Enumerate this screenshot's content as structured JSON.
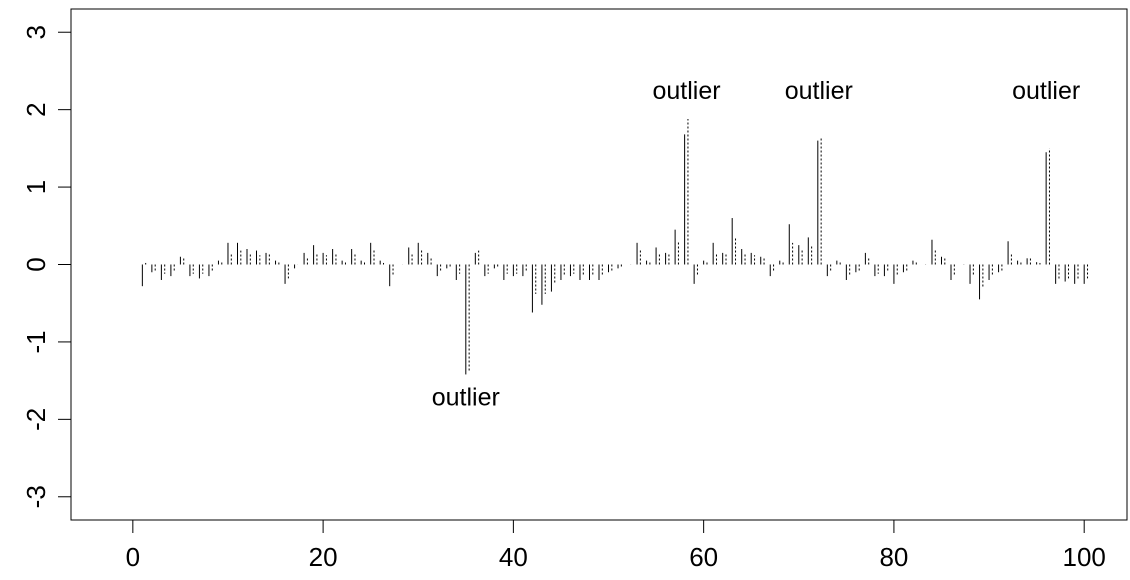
{
  "chart_data": {
    "type": "bar",
    "title": "",
    "xlabel": "",
    "ylabel": "",
    "xlim": [
      -6.5,
      104.5
    ],
    "ylim": [
      -3.3,
      3.3
    ],
    "x_ticks": [
      0,
      20,
      40,
      60,
      80,
      100
    ],
    "y_ticks": [
      -3,
      -2,
      -1,
      0,
      1,
      2,
      3
    ],
    "x_tick_labels": [
      "0",
      "20",
      "40",
      "60",
      "80",
      "100"
    ],
    "y_tick_labels": [
      "-3",
      "-2",
      "-1",
      "0",
      "1",
      "2",
      "3"
    ],
    "grid": false,
    "legend": "none",
    "series": [
      {
        "style": "solid",
        "values": [
          -0.28,
          -0.1,
          -0.2,
          -0.15,
          0.1,
          -0.15,
          -0.18,
          -0.15,
          0.05,
          0.28,
          0.28,
          0.2,
          0.18,
          0.15,
          0.05,
          -0.25,
          -0.05,
          0.15,
          0.25,
          0.15,
          0.2,
          0.05,
          0.2,
          0.05,
          0.28,
          0.05,
          -0.28,
          0.0,
          0.22,
          0.28,
          0.15,
          -0.15,
          -0.05,
          -0.2,
          -1.42,
          0.15,
          -0.15,
          -0.05,
          -0.2,
          -0.15,
          -0.15,
          -0.62,
          -0.52,
          -0.35,
          -0.2,
          -0.15,
          -0.2,
          -0.2,
          -0.2,
          -0.1,
          -0.05,
          0.0,
          0.28,
          0.05,
          0.22,
          0.15,
          0.45,
          1.68,
          -0.25,
          0.05,
          0.28,
          0.15,
          0.6,
          0.2,
          0.15,
          0.1,
          -0.15,
          0.05,
          0.52,
          0.25,
          0.35,
          1.6,
          -0.15,
          0.05,
          -0.2,
          -0.1,
          0.15,
          -0.15,
          -0.15,
          -0.25,
          -0.1,
          0.05,
          0.0,
          0.32,
          0.1,
          -0.2,
          0.0,
          -0.25,
          -0.45,
          -0.2,
          -0.1,
          0.3,
          0.05,
          0.08,
          0.03,
          1.45,
          -0.25,
          -0.22,
          -0.25,
          -0.25
        ]
      },
      {
        "style": "dotted",
        "values": [
          0.02,
          -0.08,
          -0.12,
          -0.08,
          0.08,
          -0.12,
          -0.12,
          -0.1,
          0.05,
          0.15,
          0.18,
          0.15,
          0.12,
          0.15,
          0.05,
          -0.18,
          0.0,
          0.1,
          0.15,
          0.12,
          0.15,
          0.05,
          0.15,
          0.05,
          0.2,
          0.02,
          -0.15,
          0.0,
          0.15,
          0.2,
          0.1,
          -0.1,
          -0.05,
          -0.12,
          -1.38,
          0.18,
          -0.12,
          -0.05,
          -0.12,
          -0.12,
          -0.1,
          -0.38,
          -0.38,
          -0.25,
          -0.15,
          -0.12,
          -0.15,
          -0.15,
          -0.15,
          -0.08,
          -0.05,
          0.0,
          0.2,
          0.05,
          0.15,
          0.15,
          0.3,
          1.88,
          -0.15,
          0.05,
          0.15,
          0.15,
          0.35,
          0.15,
          0.12,
          0.08,
          -0.1,
          0.05,
          0.28,
          0.2,
          0.25,
          1.65,
          -0.1,
          0.05,
          -0.15,
          -0.08,
          0.1,
          -0.12,
          -0.1,
          -0.15,
          -0.08,
          0.05,
          0.0,
          0.2,
          0.08,
          -0.15,
          0.0,
          -0.15,
          -0.3,
          -0.15,
          -0.08,
          0.15,
          0.05,
          0.08,
          0.02,
          1.5,
          -0.2,
          -0.18,
          -0.2,
          -0.18
        ]
      }
    ],
    "annotations": [
      {
        "text": "outlier",
        "x": 35,
        "y": -1.82
      },
      {
        "text": "outlier",
        "x": 58.2,
        "y": 2.14
      },
      {
        "text": "outlier",
        "x": 72.1,
        "y": 2.14
      },
      {
        "text": "outlier",
        "x": 96,
        "y": 2.14
      }
    ]
  }
}
